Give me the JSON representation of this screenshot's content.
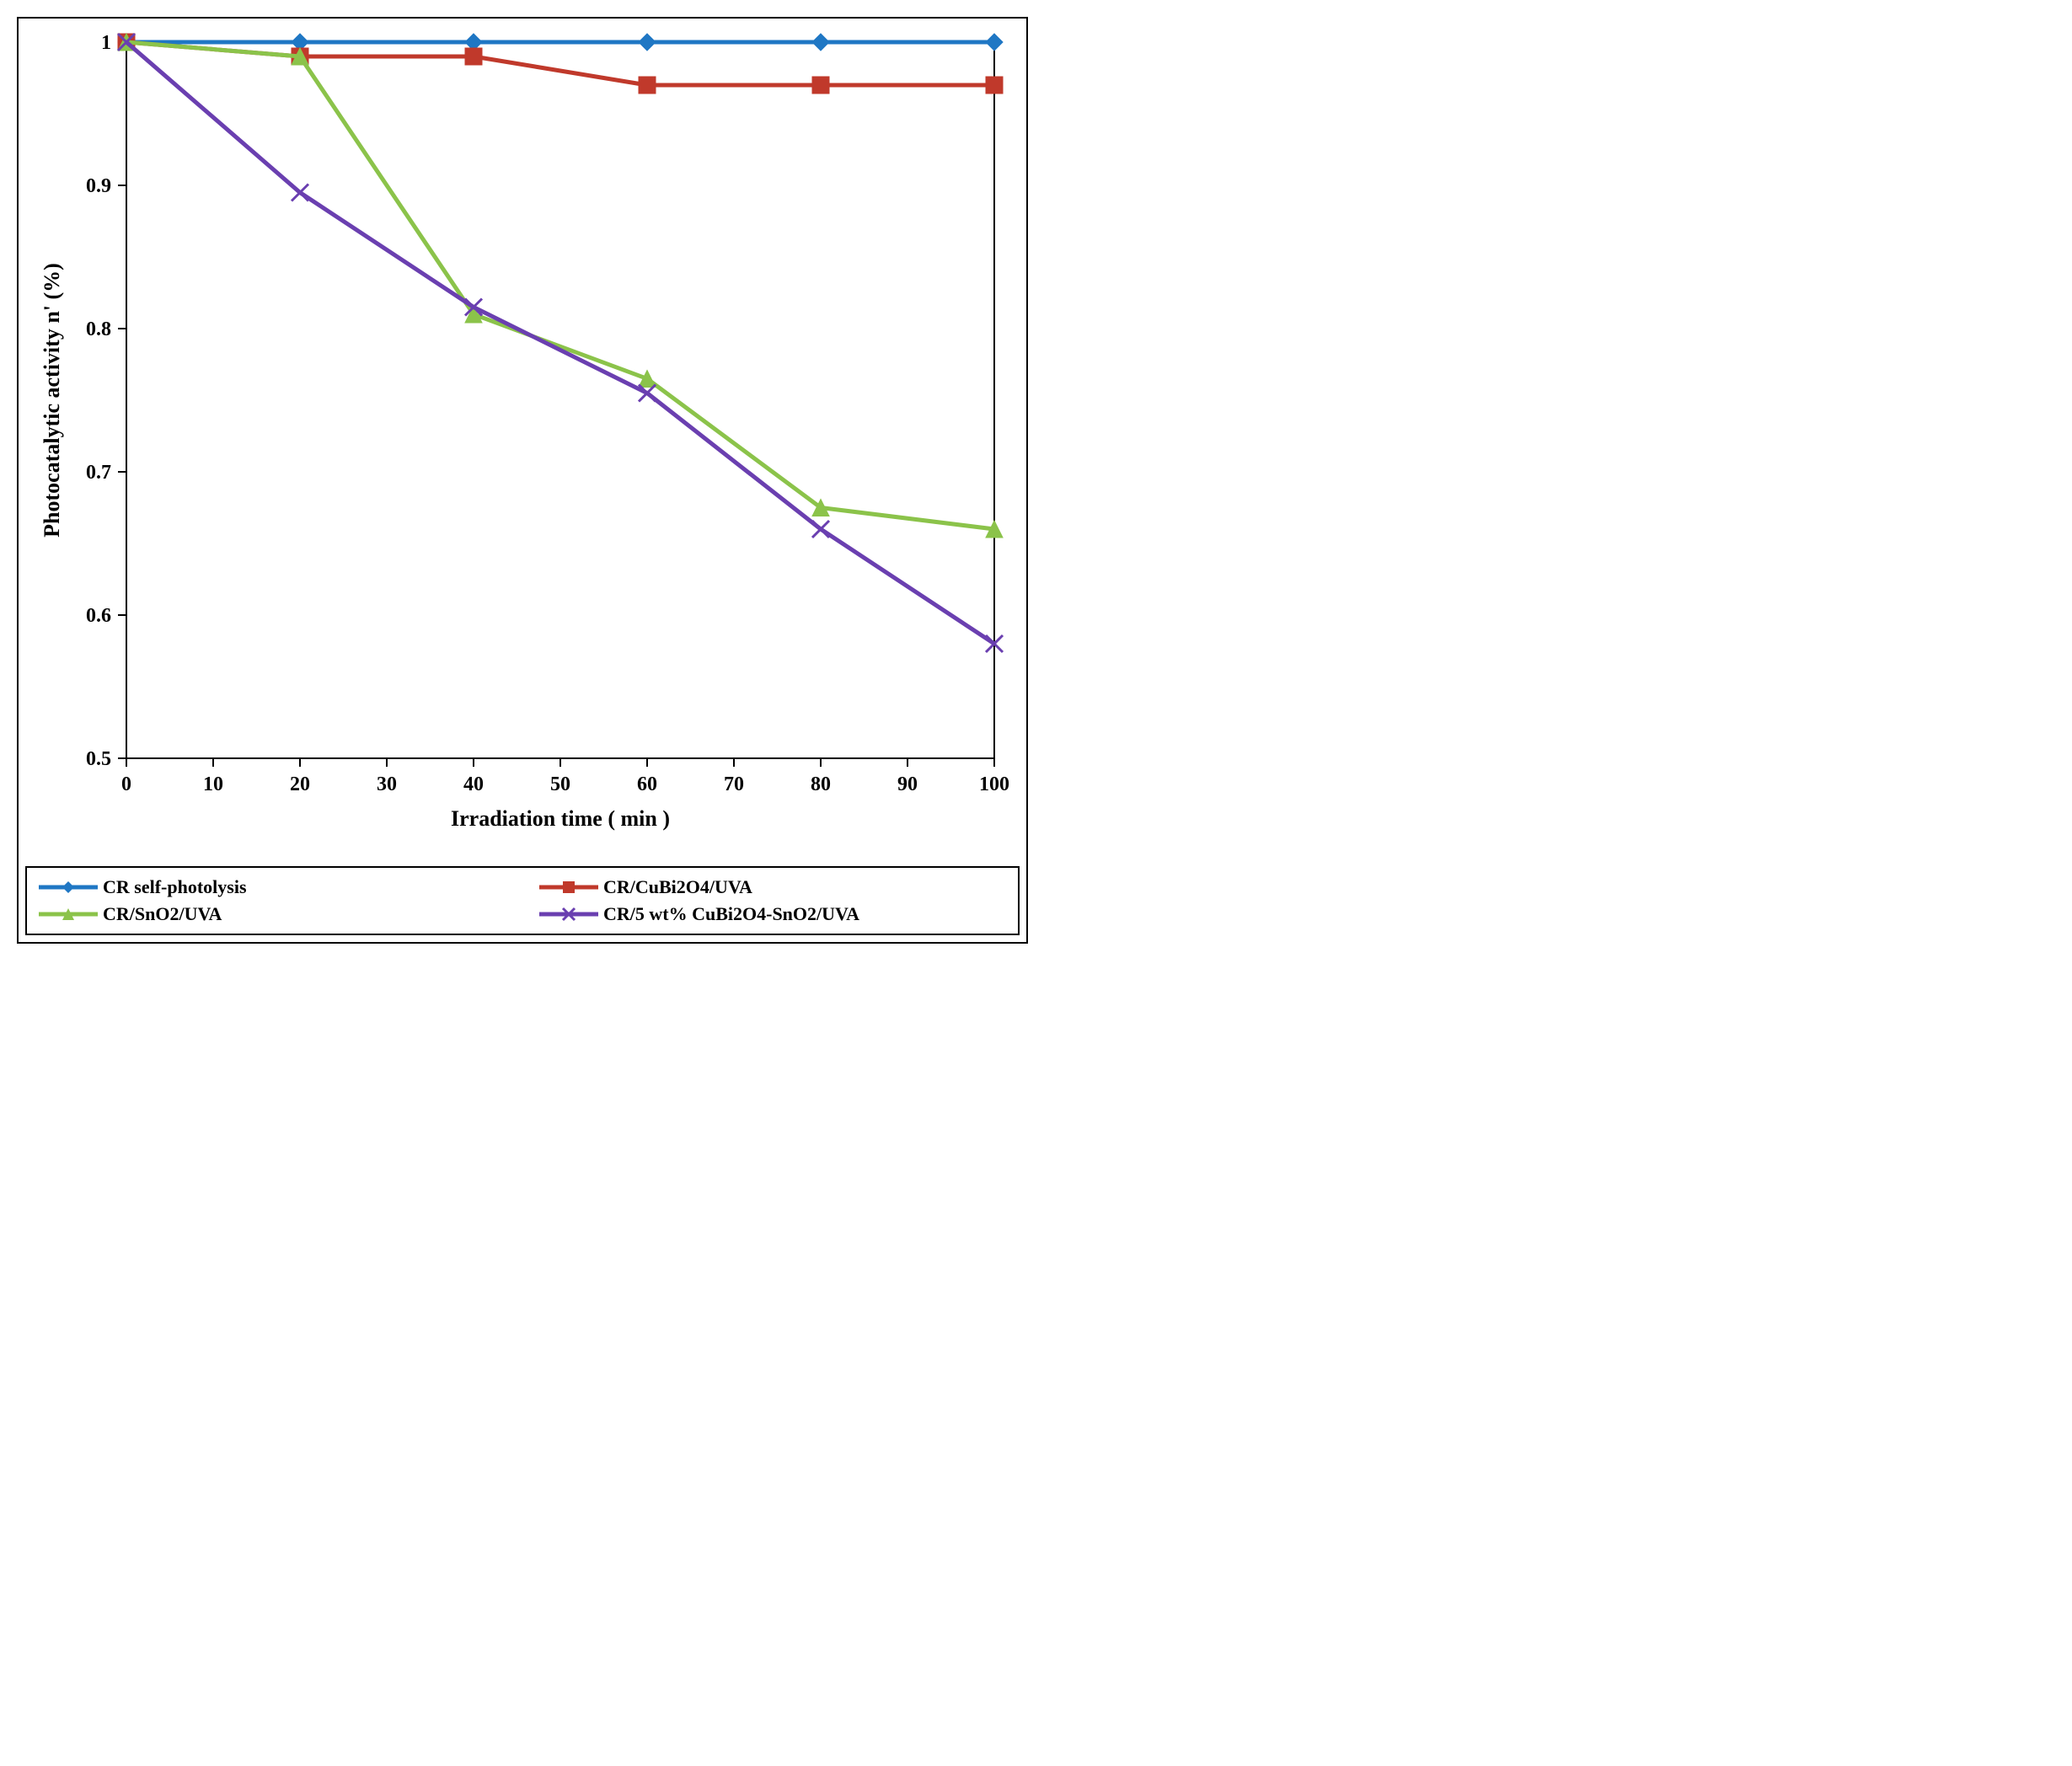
{
  "chart": {
    "type": "line",
    "x_label": "Irradiation time ( min )",
    "y_label": "Photocatalytic activity  n' (%)",
    "label_fontsize": 26,
    "tick_fontsize": 24,
    "legend_fontsize": 22,
    "background_color": "#ffffff",
    "plot_border_color": "#000000",
    "plot_border_width": 2,
    "xlim": [
      0,
      100
    ],
    "ylim": [
      0.5,
      1.0
    ],
    "xtick_step": 10,
    "ytick_step": 0.1,
    "xticks": [
      0,
      10,
      20,
      30,
      40,
      50,
      60,
      70,
      80,
      90,
      100
    ],
    "yticks": [
      0.5,
      0.6,
      0.7,
      0.8,
      0.9,
      1.0
    ],
    "line_width": 5,
    "marker_size": 10,
    "series": [
      {
        "name": "CR self-photolysis",
        "color": "#1f77c4",
        "marker": "diamond",
        "x": [
          0,
          20,
          40,
          60,
          80,
          100
        ],
        "y": [
          1.0,
          1.0,
          1.0,
          1.0,
          1.0,
          1.0
        ]
      },
      {
        "name": "CR/CuBi2O4/UVA",
        "color": "#c0392b",
        "marker": "square",
        "x": [
          0,
          20,
          40,
          60,
          80,
          100
        ],
        "y": [
          1.0,
          0.99,
          0.99,
          0.97,
          0.97,
          0.97
        ]
      },
      {
        "name": "CR/SnO2/UVA",
        "color": "#8bc34a",
        "marker": "triangle",
        "x": [
          0,
          20,
          40,
          60,
          80,
          100
        ],
        "y": [
          1.0,
          0.99,
          0.81,
          0.765,
          0.675,
          0.66
        ]
      },
      {
        "name": "CR/5 wt% CuBi2O4-SnO2/UVA",
        "color": "#6a3fb0",
        "marker": "x",
        "x": [
          0,
          20,
          40,
          60,
          80,
          100
        ],
        "y": [
          1.0,
          0.895,
          0.815,
          0.755,
          0.66,
          0.58
        ]
      }
    ]
  }
}
